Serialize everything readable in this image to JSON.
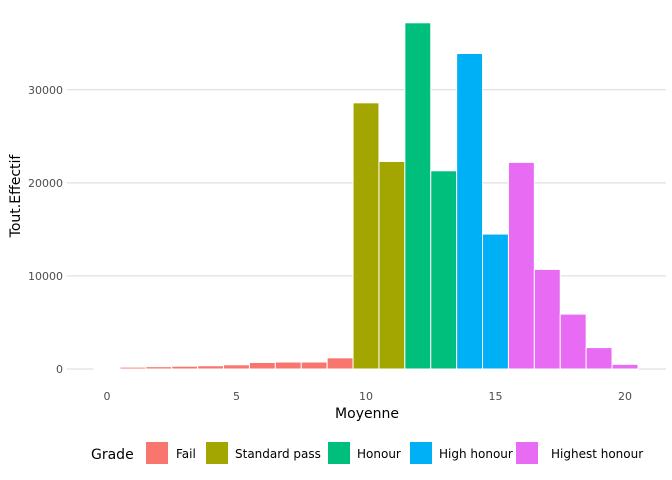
{
  "chart_data": {
    "type": "bar",
    "xlabel": "Moyenne",
    "ylabel": "Tout.Effectif",
    "xlim": [
      -1,
      21
    ],
    "ylim": [
      0,
      37500
    ],
    "x_ticks": [
      0,
      5,
      10,
      15,
      20
    ],
    "y_ticks": [
      0,
      10000,
      20000,
      30000
    ],
    "x_tick_labels": [
      "0",
      "5",
      "10",
      "15",
      "20"
    ],
    "y_tick_labels": [
      "0",
      "10000",
      "20000",
      "30000"
    ],
    "grid": true,
    "bin_width": 1,
    "bins": [
      {
        "x": 0,
        "value": 100,
        "grade": "Fail"
      },
      {
        "x": 1,
        "value": 200,
        "grade": "Fail"
      },
      {
        "x": 2,
        "value": 250,
        "grade": "Fail"
      },
      {
        "x": 3,
        "value": 300,
        "grade": "Fail"
      },
      {
        "x": 4,
        "value": 350,
        "grade": "Fail"
      },
      {
        "x": 5,
        "value": 450,
        "grade": "Fail"
      },
      {
        "x": 6,
        "value": 700,
        "grade": "Fail"
      },
      {
        "x": 7,
        "value": 750,
        "grade": "Fail"
      },
      {
        "x": 8,
        "value": 750,
        "grade": "Fail"
      },
      {
        "x": 9,
        "value": 1200,
        "grade": "Fail"
      },
      {
        "x": 10,
        "value": 28600,
        "grade": "Standard pass"
      },
      {
        "x": 11,
        "value": 22300,
        "grade": "Standard pass"
      },
      {
        "x": 12,
        "value": 37200,
        "grade": "Honour"
      },
      {
        "x": 13,
        "value": 21300,
        "grade": "Honour"
      },
      {
        "x": 14,
        "value": 33900,
        "grade": "High honour"
      },
      {
        "x": 15,
        "value": 14500,
        "grade": "High honour"
      },
      {
        "x": 16,
        "value": 22200,
        "grade": "Highest honour"
      },
      {
        "x": 17,
        "value": 10700,
        "grade": "Highest honour"
      },
      {
        "x": 18,
        "value": 5900,
        "grade": "Highest honour"
      },
      {
        "x": 19,
        "value": 2300,
        "grade": "Highest honour"
      },
      {
        "x": 20,
        "value": 500,
        "grade": "Highest honour"
      }
    ],
    "legend": {
      "title": "Grade",
      "position": "bottom",
      "entries": [
        {
          "name": "Fail",
          "color": "#F8766D"
        },
        {
          "name": "Standard pass",
          "color": "#A3A500"
        },
        {
          "name": "Honour",
          "color": "#00BF7D"
        },
        {
          "name": "High honour",
          "color": "#00B0F6"
        },
        {
          "name": "Highest honour",
          "color": "#E76BF3"
        }
      ]
    }
  }
}
